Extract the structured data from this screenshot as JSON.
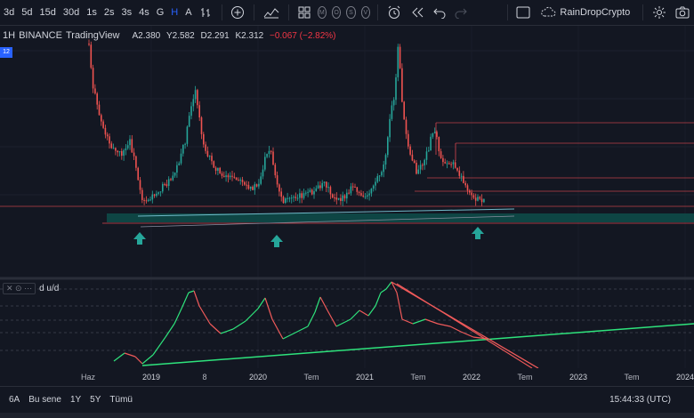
{
  "toolbar": {
    "timeframes": [
      "3d",
      "5d",
      "15d",
      "30d",
      "1s",
      "2s",
      "3s",
      "4s",
      "G",
      "H",
      "A"
    ],
    "active_timeframe": "H",
    "circle_tools": [
      "M",
      "O",
      "S",
      "V"
    ],
    "account_name": "RainDropCrypto",
    "icons": [
      "bar-style-icon",
      "add-indicator-icon",
      "indicators-icon",
      "layout-icon",
      "alert-icon",
      "replay-icon",
      "undo-icon",
      "redo-icon",
      "fullscreen-icon",
      "cloud-icon",
      "settings-icon",
      "camera-icon"
    ]
  },
  "legend": {
    "interval": "1H",
    "symbol": "BINANCE",
    "source": "TradingView",
    "open": "A2.380",
    "high": "Y2.582",
    "low": "D2.291",
    "close": "K2.312",
    "change": "−0.067 (−2.82%)"
  },
  "price_tag": "12",
  "indicator": {
    "name": "d u/d"
  },
  "x_axis": {
    "labels": [
      "Haz",
      "2019",
      "8",
      "2020",
      "Tem",
      "2021",
      "Tem",
      "2022",
      "Tem",
      "2023",
      "Tem",
      "2024"
    ]
  },
  "bottom_bar": {
    "ranges": [
      "6A",
      "Bu sene",
      "1Y",
      "5Y",
      "Tümü"
    ],
    "clock": "15:44:33 (UTC)"
  },
  "colors": {
    "background": "#131722",
    "up": "#26a69a",
    "down": "#ef5350",
    "accent": "#2962ff",
    "support_zone": "#0e4d4a",
    "green_line": "#2ee37c",
    "red_line": "#f23645"
  },
  "annotations": {
    "support_arrows": 3,
    "resistance_lines": 5
  }
}
